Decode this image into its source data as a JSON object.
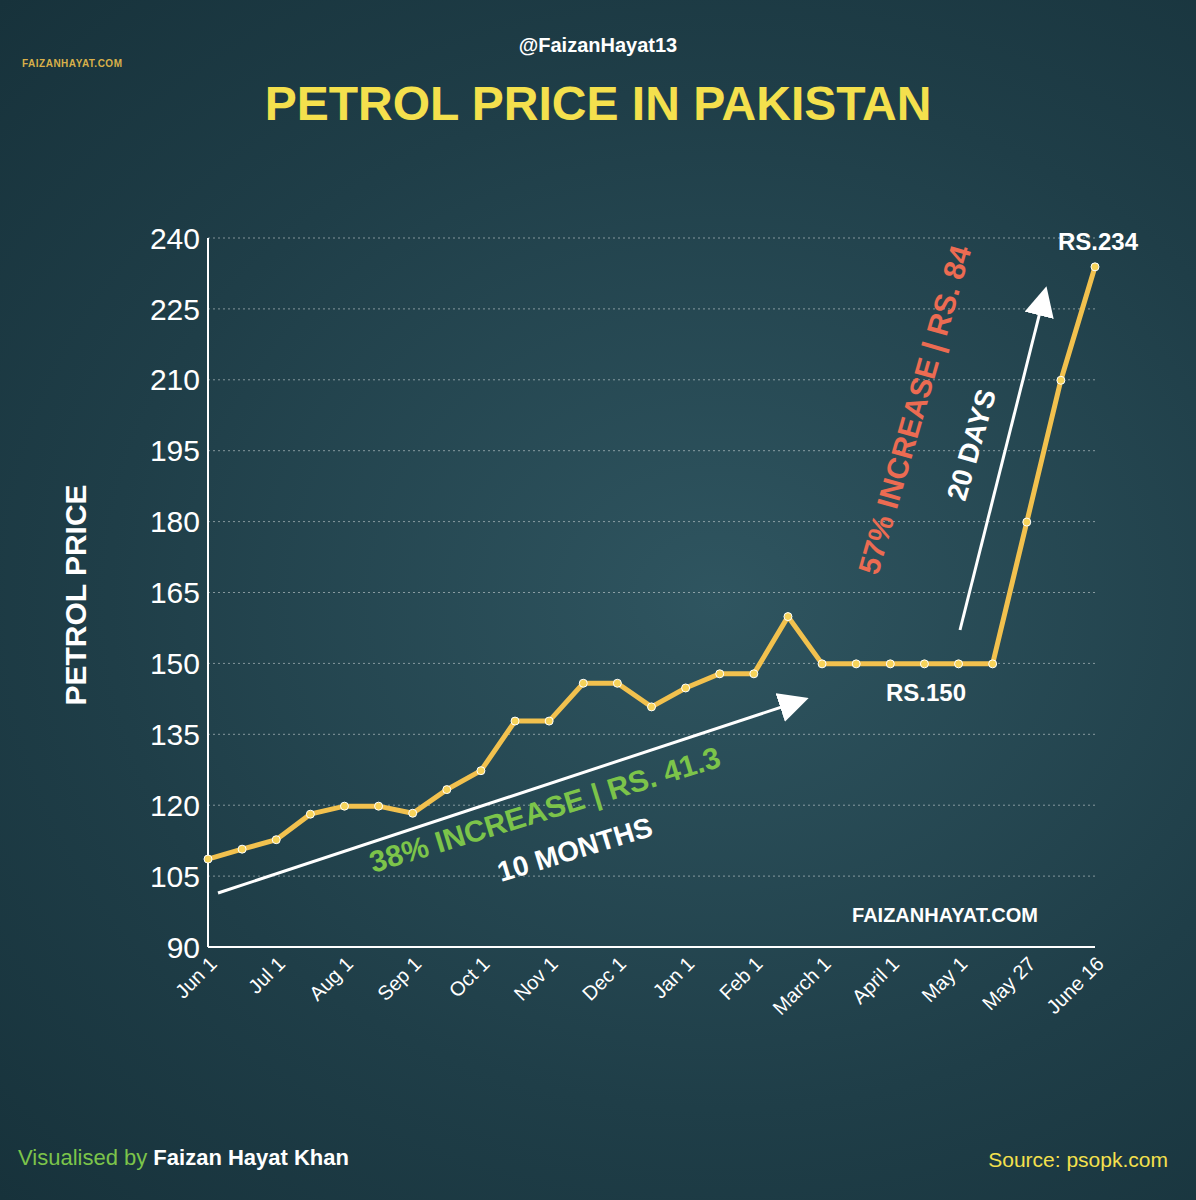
{
  "chart_data": {
    "type": "line",
    "title": "PETROL PRICE IN PAKISTAN",
    "subtitle": "@FaizanHayat13",
    "y_label": "PETROL PRICE",
    "categories": [
      "Jun 1",
      null,
      "Jul 1",
      null,
      "Aug 1",
      null,
      "Sep 1",
      null,
      "Oct 1",
      null,
      "Nov 1",
      null,
      "Dec 1",
      null,
      "Jan 1",
      null,
      "Feb 1",
      null,
      "March 1",
      null,
      "April 1",
      null,
      "May 1",
      null,
      "May 27",
      null,
      "June 16"
    ],
    "values": [
      108.6,
      110.7,
      112.7,
      118.1,
      119.8,
      119.8,
      118.3,
      123.3,
      127.3,
      137.8,
      137.8,
      145.8,
      145.8,
      140.8,
      144.8,
      147.8,
      147.8,
      159.9,
      149.9,
      149.9,
      149.9,
      149.9,
      149.9,
      149.9,
      179.9,
      209.9,
      233.9
    ],
    "color": "#f2c14e",
    "marker": "circle",
    "ylim": [
      90,
      240
    ],
    "yticks": [
      90,
      105,
      120,
      135,
      150,
      165,
      180,
      195,
      210,
      225,
      240
    ],
    "grid": true,
    "annotations": [
      "38% INCREASE | RS. 41.3",
      "10 MONTHS",
      "57% INCREASE | RS. 84",
      "20 DAYS",
      "RS.150",
      "RS.234",
      "FAIZANHAYAT.COM"
    ],
    "logo": "FAIZANHAYAT.COM",
    "credit": [
      "Visualised by",
      "Faizan Hayat Khan"
    ],
    "source": "Source: psopk.com"
  }
}
